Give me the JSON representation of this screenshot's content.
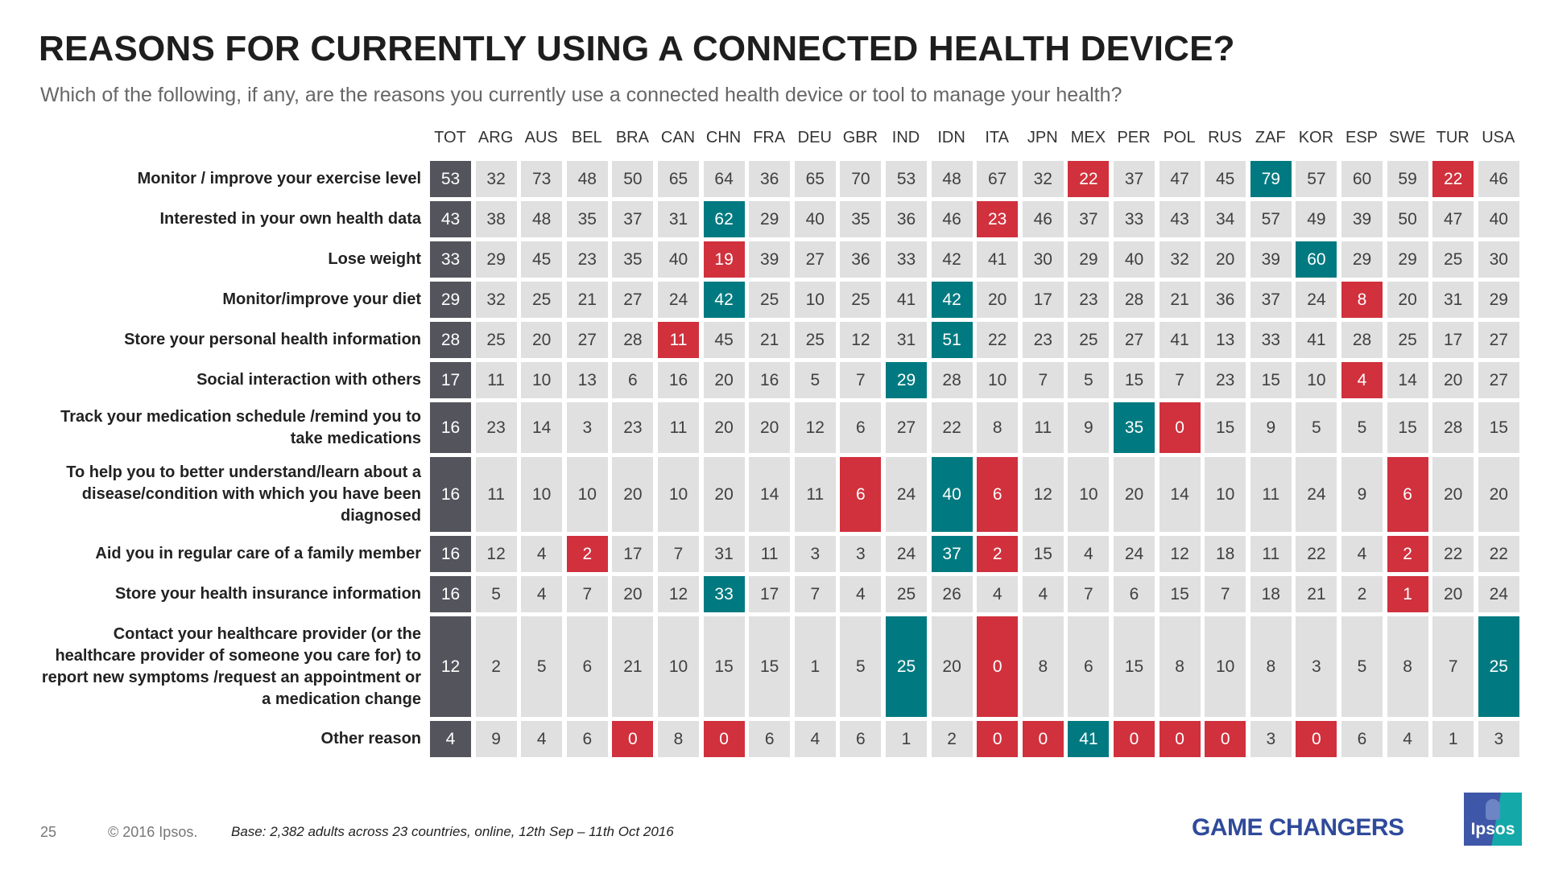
{
  "title": "REASONS FOR CURRENTLY USING A CONNECTED HEALTH DEVICE?",
  "subtitle": "Which of the following, if any, are the reasons you currently use a connected health device or tool to manage your health?",
  "colors": {
    "total": "#54545c",
    "neutral": "#e0e0e0",
    "high": "#007a80",
    "low": "#d0313d"
  },
  "chart_data": {
    "type": "table",
    "columns": [
      "TOT",
      "ARG",
      "AUS",
      "BEL",
      "BRA",
      "CAN",
      "CHN",
      "FRA",
      "DEU",
      "GBR",
      "IND",
      "IDN",
      "ITA",
      "JPN",
      "MEX",
      "PER",
      "POL",
      "RUS",
      "ZAF",
      "KOR",
      "ESP",
      "SWE",
      "TUR",
      "USA"
    ],
    "rows": [
      {
        "label": "Monitor / improve your exercise level",
        "values": [
          53,
          32,
          73,
          48,
          50,
          65,
          64,
          36,
          65,
          70,
          53,
          48,
          67,
          32,
          22,
          37,
          47,
          45,
          79,
          57,
          60,
          59,
          22,
          46
        ],
        "high": [
          "ZAF"
        ],
        "low": [
          "MEX",
          "TUR"
        ]
      },
      {
        "label": "Interested in your own health data",
        "values": [
          43,
          38,
          48,
          35,
          37,
          31,
          62,
          29,
          40,
          35,
          36,
          46,
          23,
          46,
          37,
          33,
          43,
          34,
          57,
          49,
          39,
          50,
          47,
          40
        ],
        "high": [
          "CHN"
        ],
        "low": [
          "ITA"
        ]
      },
      {
        "label": "Lose weight",
        "values": [
          33,
          29,
          45,
          23,
          35,
          40,
          19,
          39,
          27,
          36,
          33,
          42,
          41,
          30,
          29,
          40,
          32,
          20,
          39,
          60,
          29,
          29,
          25,
          30
        ],
        "high": [
          "KOR"
        ],
        "low": [
          "CHN"
        ]
      },
      {
        "label": "Monitor/improve your diet",
        "values": [
          29,
          32,
          25,
          21,
          27,
          24,
          42,
          25,
          10,
          25,
          41,
          42,
          20,
          17,
          23,
          28,
          21,
          36,
          37,
          24,
          8,
          20,
          31,
          29
        ],
        "high": [
          "CHN",
          "IDN"
        ],
        "low": [
          "ESP"
        ]
      },
      {
        "label": "Store your personal health information",
        "values": [
          28,
          25,
          20,
          27,
          28,
          11,
          45,
          21,
          25,
          12,
          31,
          51,
          22,
          23,
          25,
          27,
          41,
          13,
          33,
          41,
          28,
          25,
          17,
          27
        ],
        "high": [
          "IDN"
        ],
        "low": [
          "CAN"
        ]
      },
      {
        "label": "Social interaction with others",
        "values": [
          17,
          11,
          10,
          13,
          6,
          16,
          20,
          16,
          5,
          7,
          29,
          28,
          10,
          7,
          5,
          15,
          7,
          23,
          15,
          10,
          4,
          14,
          20,
          27
        ],
        "high": [
          "IND"
        ],
        "low": [
          "ESP"
        ]
      },
      {
        "label": "Track your medication schedule /remind you to take medications",
        "values": [
          16,
          23,
          14,
          3,
          23,
          11,
          20,
          20,
          12,
          6,
          27,
          22,
          8,
          11,
          9,
          35,
          0,
          15,
          9,
          5,
          5,
          15,
          28,
          15
        ],
        "high": [
          "PER"
        ],
        "low": [
          "POL"
        ]
      },
      {
        "label": "To help you to better understand/learn about a disease/condition with which you have been diagnosed",
        "values": [
          16,
          11,
          10,
          10,
          20,
          10,
          20,
          14,
          11,
          6,
          24,
          40,
          6,
          12,
          10,
          20,
          14,
          10,
          11,
          24,
          9,
          6,
          20,
          20
        ],
        "high": [
          "IDN"
        ],
        "low": [
          "GBR",
          "ITA",
          "SWE"
        ]
      },
      {
        "label": "Aid you in regular care of a family member",
        "values": [
          16,
          12,
          4,
          2,
          17,
          7,
          31,
          11,
          3,
          3,
          24,
          37,
          2,
          15,
          4,
          24,
          12,
          18,
          11,
          22,
          4,
          2,
          22,
          22
        ],
        "high": [
          "IDN"
        ],
        "low": [
          "BEL",
          "ITA",
          "SWE"
        ]
      },
      {
        "label": "Store your health insurance information",
        "values": [
          16,
          5,
          4,
          7,
          20,
          12,
          33,
          17,
          7,
          4,
          25,
          26,
          4,
          4,
          7,
          6,
          15,
          7,
          18,
          21,
          2,
          1,
          20,
          24
        ],
        "high": [
          "CHN"
        ],
        "low": [
          "SWE"
        ]
      },
      {
        "label": "Contact your healthcare provider (or the healthcare provider of someone you care for) to report new symptoms /request an appointment or a medication change",
        "values": [
          12,
          2,
          5,
          6,
          21,
          10,
          15,
          15,
          1,
          5,
          25,
          20,
          0,
          8,
          6,
          15,
          8,
          10,
          8,
          3,
          5,
          8,
          7,
          25
        ],
        "high": [
          "IND",
          "USA"
        ],
        "low": [
          "ITA"
        ]
      },
      {
        "label": "Other reason",
        "values": [
          4,
          9,
          4,
          6,
          0,
          8,
          0,
          6,
          4,
          6,
          1,
          2,
          0,
          0,
          41,
          0,
          0,
          0,
          3,
          0,
          6,
          4,
          1,
          3
        ],
        "high": [
          "MEX"
        ],
        "low": [
          "BRA",
          "CHN",
          "ITA",
          "JPN",
          "PER",
          "POL",
          "RUS",
          "KOR"
        ]
      }
    ]
  },
  "footer": {
    "page": "25",
    "copyright": "© 2016 Ipsos.",
    "base": "Base: 2,382 adults across 23 countries, online, 12th Sep – 11th Oct 2016",
    "brand": "GAME CHANGERS",
    "logo": "Ipsos"
  }
}
